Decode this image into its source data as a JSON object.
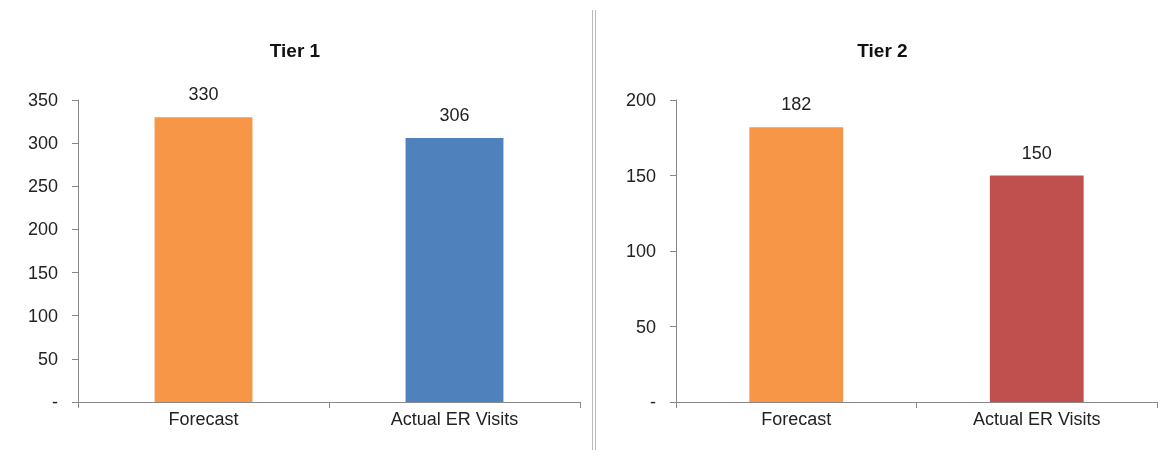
{
  "chart_data": [
    {
      "type": "bar",
      "title": "Tier 1",
      "categories": [
        "Forecast",
        "Actual ER Visits"
      ],
      "values": [
        330,
        306
      ],
      "colors": [
        "#f79646",
        "#4f81bd"
      ],
      "ylim": [
        0,
        350
      ],
      "yticks": [
        {
          "value": 0,
          "label": "-"
        },
        50,
        100,
        150,
        200,
        250,
        300,
        350
      ],
      "data_labels": true
    },
    {
      "type": "bar",
      "title": "Tier 2",
      "categories": [
        "Forecast",
        "Actual ER Visits"
      ],
      "values": [
        182,
        150
      ],
      "colors": [
        "#f79646",
        "#c0504d"
      ],
      "ylim": [
        0,
        200
      ],
      "yticks": [
        {
          "value": 0,
          "label": "-"
        },
        50,
        100,
        150,
        200
      ],
      "data_labels": true
    }
  ]
}
